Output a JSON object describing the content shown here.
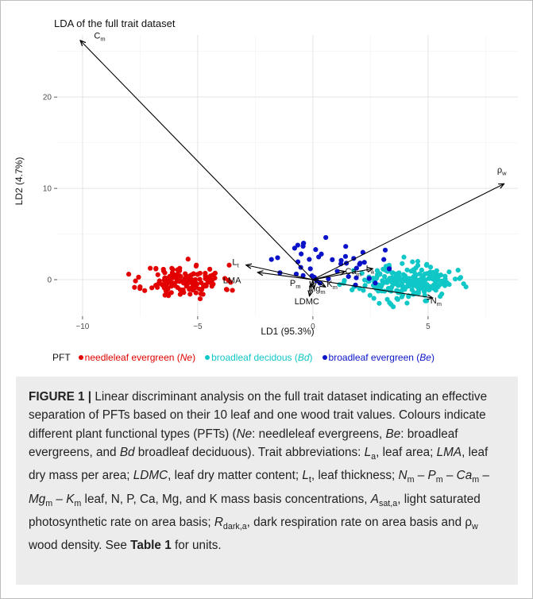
{
  "chart_data": {
    "type": "scatter",
    "title": "LDA of the full trait dataset",
    "xlabel": "LD1 (95.3%)",
    "ylabel": "LD2 (4.7%)",
    "xlim": [
      -11.1,
      8.9
    ],
    "ylim": [
      -4.0,
      26.8
    ],
    "xticks": [
      -10,
      -5,
      0,
      5
    ],
    "yticks": [
      0,
      10,
      20
    ],
    "xtick_labels": [
      "−10",
      "−5",
      "0",
      "5"
    ],
    "ytick_labels": [
      "0",
      "10",
      "20"
    ],
    "grid": true,
    "legend": {
      "title": "PFT",
      "placement": "bottom",
      "entries": [
        {
          "label": "needleleaf evergreen (",
          "abbr": "Ne",
          "close": ")",
          "color": "#e30000"
        },
        {
          "label": "broadleaf decidous (",
          "abbr": "Bd",
          "close": ")",
          "color": "#10c7c7"
        },
        {
          "label": "broadleaf evergreen (",
          "abbr": "Be",
          "close": ")",
          "color": "#0b13c9"
        }
      ]
    },
    "series": [
      {
        "name": "needleleaf evergreen (Ne)",
        "color": "#e30000",
        "center": [
          -5.6,
          -0.2
        ],
        "spread": [
          0.85,
          0.9
        ],
        "n": 150,
        "seed": 11
      },
      {
        "name": "broadleaf decidous (Bd)",
        "color": "#10c7c7",
        "center": [
          4.0,
          -0.3
        ],
        "spread": [
          1.05,
          0.9
        ],
        "n": 240,
        "seed": 23
      },
      {
        "name": "broadleaf evergreen (Be)",
        "color": "#0b13c9",
        "center": [
          0.8,
          1.7
        ],
        "spread": [
          1.1,
          1.2
        ],
        "n": 45,
        "seed": 37
      }
    ],
    "vectors": [
      {
        "label": "C",
        "sub": "m",
        "x": -10.1,
        "y": 26.2,
        "lx": -9.5,
        "ly": 26.4
      },
      {
        "label": "ρ",
        "sub": "w",
        "x": 8.3,
        "y": 10.5,
        "lx": 8.0,
        "ly": 11.7
      },
      {
        "label": "L",
        "sub": "t",
        "x": -2.9,
        "y": 1.6,
        "lx": -3.5,
        "ly": 1.6
      },
      {
        "label": "LMA",
        "sub": "",
        "x": -2.4,
        "y": 0.8,
        "lx": -3.9,
        "ly": -0.4
      },
      {
        "label": "Ca",
        "sub": "m",
        "x": 1.4,
        "y": 0.9,
        "lx": 1.4,
        "ly": 0.6
      },
      {
        "label": "L",
        "sub": "a",
        "x": 2.6,
        "y": 1.2,
        "lx": 2.3,
        "ly": 0.9
      },
      {
        "label": "N",
        "sub": "m",
        "x": 5.2,
        "y": -2.0,
        "lx": 5.1,
        "ly": -2.6
      },
      {
        "label": "P",
        "sub": "m",
        "x": -0.1,
        "y": -0.8,
        "lx": -1.0,
        "ly": -0.7
      },
      {
        "label": "Mg",
        "sub": "m",
        "x": 0.05,
        "y": -1.0,
        "lx": -0.2,
        "ly": -1.3
      },
      {
        "label": "K",
        "sub": "m",
        "x": 0.55,
        "y": -0.8,
        "lx": 0.6,
        "ly": -0.8
      },
      {
        "label": "LDMC",
        "sub": "",
        "x": -0.15,
        "y": -1.8,
        "lx": -0.8,
        "ly": -2.7
      }
    ]
  },
  "caption": {
    "figure_label": "FIGURE 1 |",
    "text_1": " Linear discriminant analysis on the full trait dataset indicating an effective separation of PFTs based on their 10 leaf and one wood trait values. Colours indicate different plant functional types (PFTs) (",
    "ne": "Ne",
    "text_2": ": needleleaf evergreens, ",
    "be": "Be",
    "text_3": ": broadleaf evergreens, and ",
    "bd": "Bd",
    "text_4": " broadleaf deciduous). Trait abbreviations: ",
    "la": "L",
    "la_sub": "a",
    "text_5": ", leaf area; ",
    "lma": "LMA",
    "text_6": ", leaf dry mass per area; ",
    "ldmc": "LDMC",
    "text_7": ", leaf dry matter content; ",
    "lt": "L",
    "lt_sub": "t",
    "text_8": ", leaf thickness; ",
    "nm": "N",
    "m1": "m",
    "dash1": " – ",
    "pm": "P",
    "m2": "m",
    "dash2": " – ",
    "cam": "Ca",
    "m3": "m",
    "dash3": " – ",
    "mgm": "Mg",
    "m4": "m",
    "dash4": " – ",
    "km": "K",
    "m5": "m",
    "text_9": " leaf, N, P, Ca, Mg, and K mass basis concentrations, ",
    "asat": "A",
    "asat_sub": "sat,a",
    "text_10": ", light saturated photosynthetic rate on area basis; ",
    "rdark": "R",
    "rdark_sub": "dark,a",
    "text_11": ", dark respiration rate on area basis and ρ",
    "rho_sub": "w",
    "text_12": " wood density. See ",
    "table_ref": "Table 1",
    "text_13": " for units."
  }
}
